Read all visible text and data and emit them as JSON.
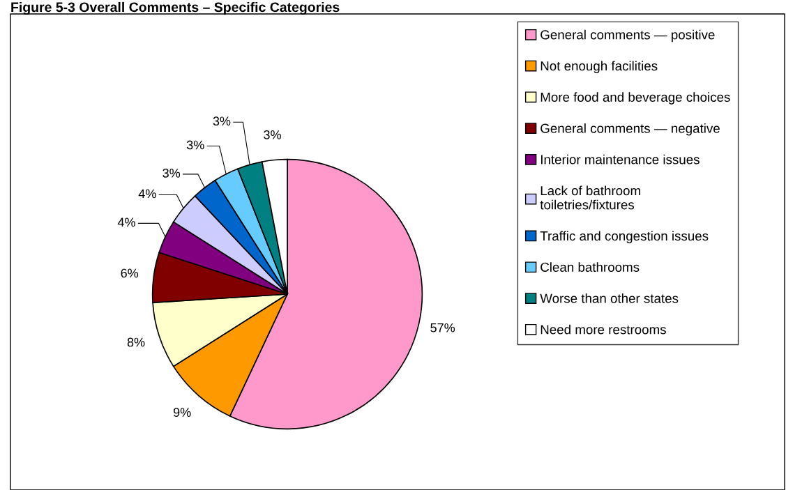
{
  "chart_data": {
    "type": "pie",
    "title": "Figure 5-3 Overall Comments – Specific Categories",
    "categories": [
      "General comments — positive",
      "Not enough facilities",
      "More food and beverage choices",
      "General comments — negative",
      "Interior maintenance issues",
      "Lack of bathroom\ntoiletries/fixtures",
      "Traffic and congestion issues",
      "Clean bathrooms",
      "Worse than other states",
      "Need more restrooms"
    ],
    "values": [
      57,
      9,
      8,
      6,
      4,
      4,
      3,
      3,
      3,
      3
    ],
    "value_labels": [
      "57%",
      "9%",
      "8%",
      "6%",
      "4%",
      "4%",
      "3%",
      "3%",
      "3%",
      "3%"
    ],
    "colors": [
      "#ff99cc",
      "#ff9900",
      "#ffffcc",
      "#800000",
      "#800080",
      "#ccccff",
      "#0066cc",
      "#66ccff",
      "#008080",
      "#ffffff"
    ],
    "legend": "right"
  }
}
